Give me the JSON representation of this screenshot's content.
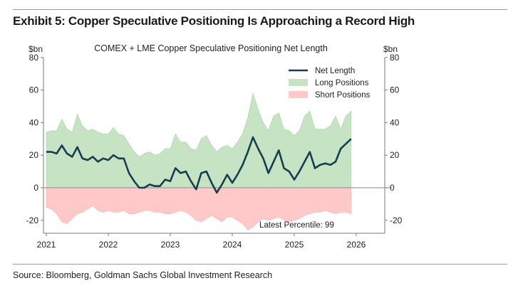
{
  "exhibit": {
    "title": "Exhibit 5: Copper Speculative Positioning Is Approaching a Record High",
    "source": "Source: Bloomberg, Goldman Sachs Global Investment Research"
  },
  "chart_data": {
    "type": "area",
    "title": "COMEX + LME Copper Speculative Positioning Net Length",
    "ylabel_left": "$bn",
    "ylabel_right": "$bn",
    "xlabel": "",
    "ylim": [
      -30,
      80
    ],
    "xlim": [
      2021.0,
      2026.4
    ],
    "yticks": [
      80,
      60,
      40,
      20,
      0,
      -20
    ],
    "xticks": [
      2021,
      2022,
      2023,
      2024,
      2025,
      2026
    ],
    "grid": false,
    "legend_position": "top-right",
    "legend": [
      "Net Length",
      "Long Positions",
      "Short Positions"
    ],
    "annotation": "Latest Percentile: 99",
    "colors": {
      "net": "#163e4f",
      "long": "#c6e3c4",
      "short": "#ffc9c9",
      "zero": "#8a8a8a",
      "axis": "#7a7a7a"
    },
    "x": [
      2021.0,
      2021.083,
      2021.167,
      2021.25,
      2021.333,
      2021.417,
      2021.5,
      2021.583,
      2021.667,
      2021.75,
      2021.833,
      2021.917,
      2022.0,
      2022.083,
      2022.167,
      2022.25,
      2022.333,
      2022.417,
      2022.5,
      2022.583,
      2022.667,
      2022.75,
      2022.833,
      2022.917,
      2023.0,
      2023.083,
      2023.167,
      2023.25,
      2023.333,
      2023.417,
      2023.5,
      2023.583,
      2023.667,
      2023.75,
      2023.833,
      2023.917,
      2024.0,
      2024.083,
      2024.167,
      2024.25,
      2024.333,
      2024.417,
      2024.5,
      2024.583,
      2024.667,
      2024.75,
      2024.833,
      2024.917,
      2025.0,
      2025.083,
      2025.167,
      2025.25,
      2025.333,
      2025.417,
      2025.5,
      2025.583,
      2025.667,
      2025.75,
      2025.833,
      2025.917
    ],
    "series": [
      {
        "name": "Long Positions",
        "values": [
          34,
          35,
          35,
          42,
          36,
          34,
          45,
          38,
          35,
          36,
          34,
          33,
          33,
          37,
          33,
          32,
          27,
          22,
          19,
          21,
          22,
          20,
          21,
          24,
          24,
          33,
          28,
          28,
          24,
          23,
          30,
          32,
          26,
          22,
          25,
          26,
          24,
          28,
          33,
          43,
          58,
          48,
          40,
          35,
          44,
          46,
          36,
          35,
          32,
          35,
          44,
          47,
          36,
          36,
          36,
          38,
          44,
          36,
          44,
          47
        ]
      },
      {
        "name": "Short Positions",
        "values": [
          -12,
          -13,
          -16,
          -21,
          -22,
          -19,
          -16,
          -15,
          -13,
          -11,
          -14,
          -15,
          -14,
          -15,
          -15,
          -14,
          -16,
          -16,
          -15,
          -14,
          -14,
          -15,
          -15,
          -16,
          -16,
          -15,
          -14,
          -15,
          -17,
          -20,
          -21,
          -19,
          -17,
          -19,
          -21,
          -18,
          -18,
          -20,
          -22,
          -26,
          -24,
          -21,
          -19,
          -20,
          -19,
          -18,
          -20,
          -21,
          -20,
          -19,
          -17,
          -16,
          -15,
          -15,
          -14,
          -15,
          -16,
          -15,
          -15,
          -16
        ]
      },
      {
        "name": "Net Length",
        "values": [
          22,
          22,
          21,
          26,
          21,
          19,
          25,
          18,
          17,
          19,
          16,
          18,
          17,
          20,
          18,
          18,
          9,
          4,
          0,
          0,
          2,
          1,
          1,
          5,
          4,
          12,
          9,
          10,
          4,
          -1,
          9,
          10,
          3,
          -3,
          2,
          8,
          3,
          8,
          14,
          22,
          31,
          24,
          18,
          9,
          16,
          23,
          12,
          10,
          5,
          10,
          16,
          22,
          12,
          14,
          15,
          14,
          16,
          24,
          27,
          30
        ]
      }
    ]
  }
}
